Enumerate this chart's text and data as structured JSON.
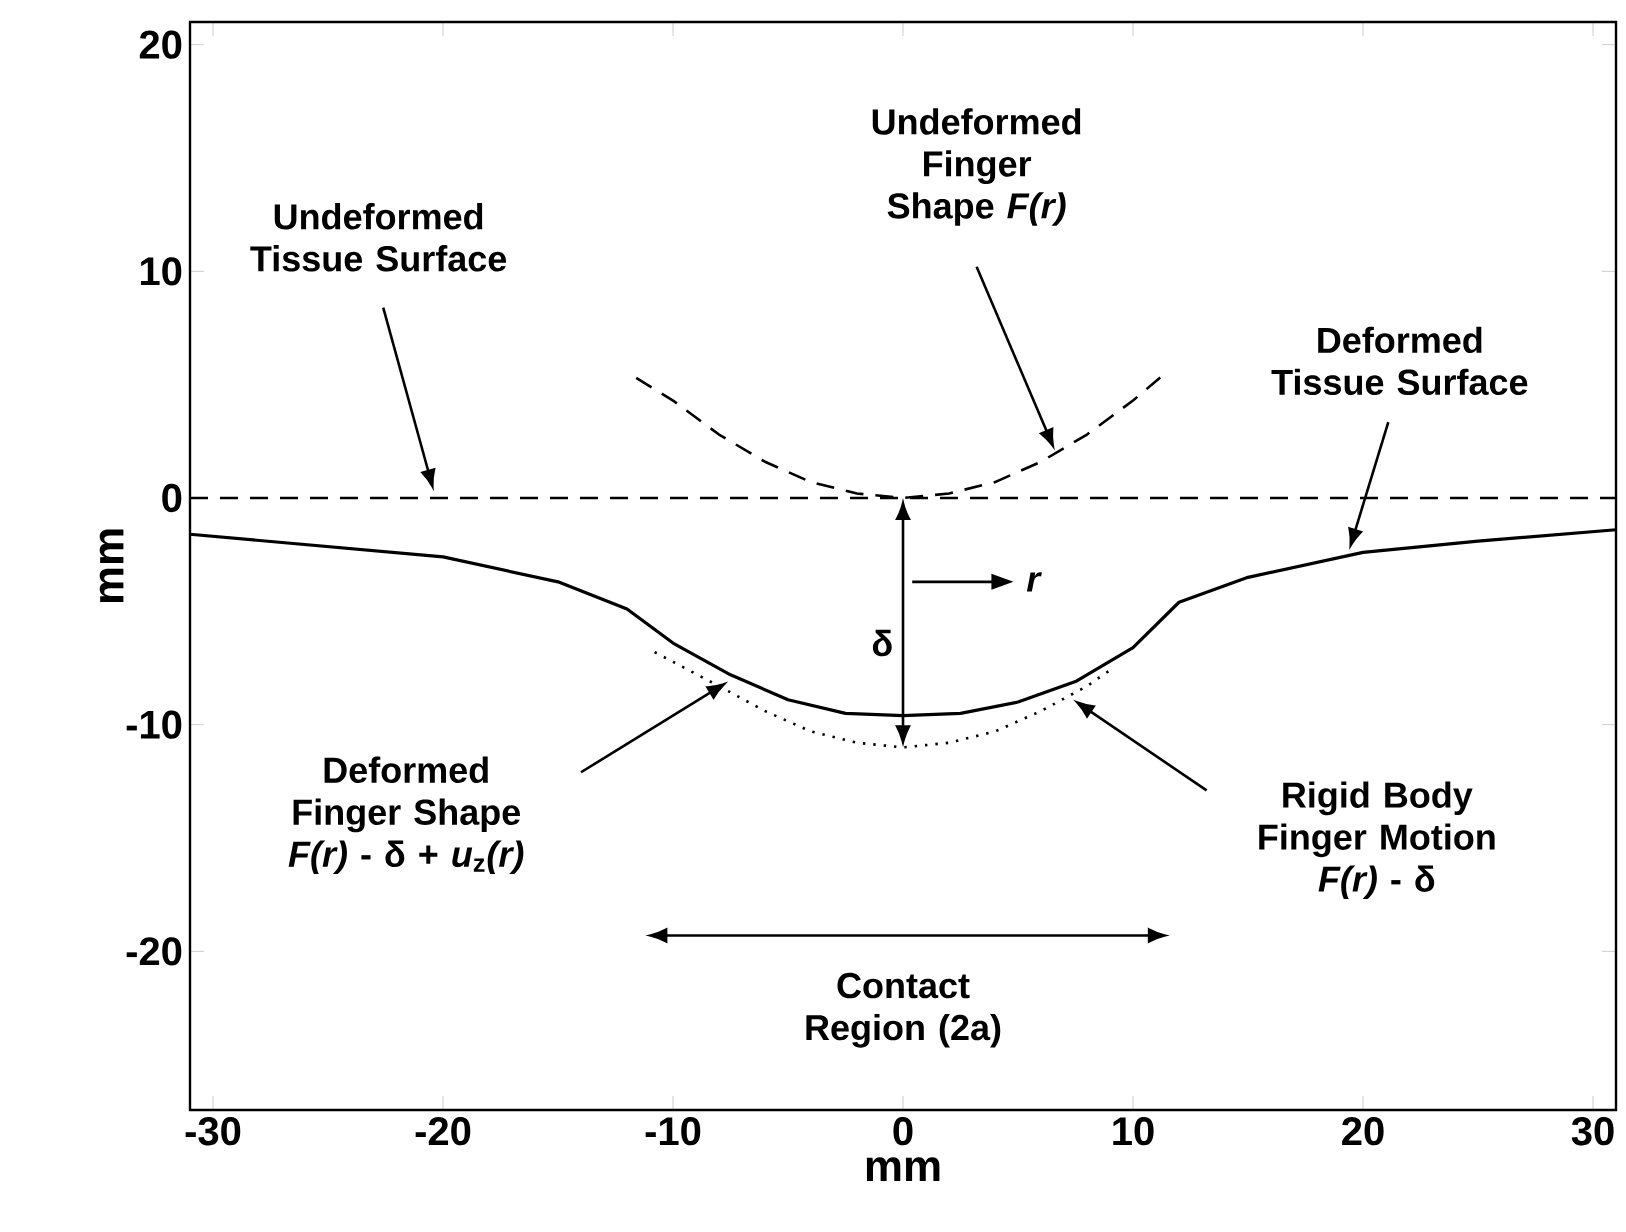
{
  "chart_data": {
    "type": "line",
    "xlabel": "mm",
    "ylabel": "mm",
    "xlim": [
      -31,
      31
    ],
    "ylim": [
      -27,
      21
    ],
    "xticks": [
      -30,
      -20,
      -10,
      0,
      10,
      20,
      30
    ],
    "yticks": [
      -20,
      -10,
      0,
      10,
      20
    ],
    "series": [
      {
        "color": "#000000",
        "line_style": "dashed",
        "x": [
          -31,
          31
        ],
        "values": [
          0,
          0
        ]
      },
      {
        "color": "#000000",
        "line_style": "dashed",
        "x": [
          -11.6,
          -10,
          -8,
          -6,
          -4,
          -2,
          0,
          2,
          4,
          6,
          8,
          10,
          11.4
        ],
        "values": [
          5.3,
          4.3,
          2.8,
          1.6,
          0.7,
          0.2,
          0,
          0.2,
          0.7,
          1.6,
          2.8,
          4.3,
          5.5
        ]
      },
      {
        "color": "#000000",
        "line_style": "dotted",
        "x": [
          -10.8,
          -8,
          -6,
          -4,
          -2,
          0,
          2,
          4,
          6,
          8,
          9
        ],
        "values": [
          -6.8,
          -8.3,
          -9.4,
          -10.3,
          -10.8,
          -11,
          -10.8,
          -10.3,
          -9.4,
          -8.3,
          -7.6
        ]
      },
      {
        "color": "#000000",
        "line_style": "solid",
        "x": [
          -31,
          -20,
          -15,
          -12,
          -10,
          -7.5,
          -5,
          -2.5,
          0,
          2.5,
          5,
          7.5,
          10,
          12,
          15,
          20,
          25,
          31
        ],
        "values": [
          -1.6,
          -2.6,
          -3.7,
          -4.9,
          -6.4,
          -7.8,
          -8.9,
          -9.5,
          -9.6,
          -9.5,
          -9.0,
          -8.1,
          -6.6,
          -4.6,
          -3.5,
          -2.4,
          -1.9,
          -1.4
        ]
      }
    ],
    "annotations": [
      "Undeformed Tissue Surface",
      "Undeformed Finger Shape *F(r)*",
      "Deformed Tissue Surface",
      "Deformed Finger Shape *F(r)* - δ + *u*$_{z}$*(r)*",
      "Rigid Body Finger Motion *F(r)* - δ",
      "δ",
      "*r*",
      "Contact Region (2a)"
    ]
  }
}
